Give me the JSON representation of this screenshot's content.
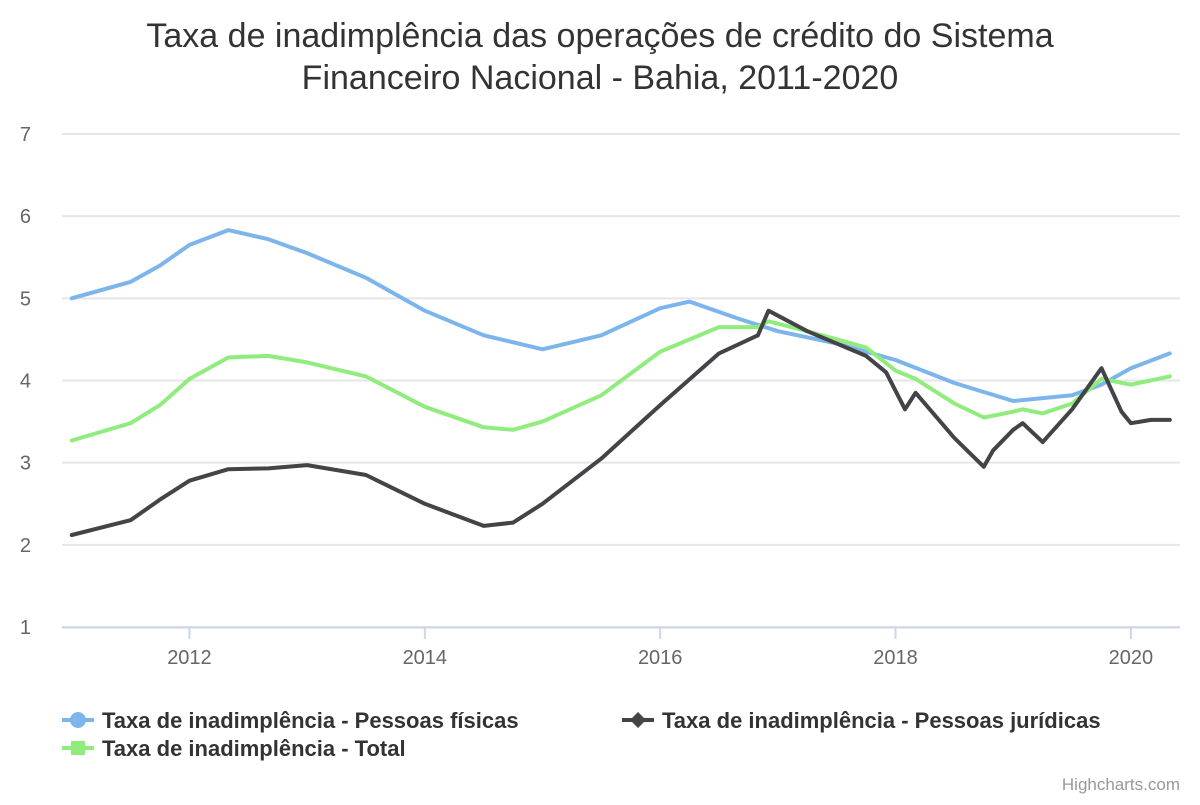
{
  "chart_data": {
    "type": "line",
    "title_line1": "Taxa de inadimplência das operações de crédito do Sistema",
    "title_line2": "Financeiro Nacional - Bahia, 2011-2020",
    "ylim": [
      1,
      7
    ],
    "xlim": [
      2010.917,
      2020.417
    ],
    "y_ticks": [
      "1",
      "2",
      "3",
      "4",
      "5",
      "6",
      "7"
    ],
    "x_ticks": [
      "2012",
      "2014",
      "2016",
      "2018",
      "2020"
    ],
    "grid": true,
    "legend_position": "bottom",
    "series": [
      {
        "name": "Taxa de inadimplência - Pessoas físicas",
        "color": "#7cb5ec",
        "marker": "circle",
        "x": [
          2011.0,
          2011.5,
          2011.75,
          2012.0,
          2012.33,
          2012.67,
          2013.0,
          2013.5,
          2014.0,
          2014.5,
          2015.0,
          2015.5,
          2016.0,
          2016.25,
          2016.67,
          2017.0,
          2017.5,
          2018.0,
          2018.5,
          2019.0,
          2019.5,
          2019.75,
          2020.0,
          2020.33
        ],
        "y": [
          5.0,
          5.2,
          5.4,
          5.65,
          5.83,
          5.72,
          5.55,
          5.25,
          4.85,
          4.55,
          4.38,
          4.55,
          4.88,
          4.96,
          4.75,
          4.6,
          4.45,
          4.25,
          3.97,
          3.75,
          3.82,
          3.95,
          4.15,
          4.33
        ]
      },
      {
        "name": "Taxa de inadimplência - Pessoas jurídicas",
        "color": "#434348",
        "marker": "diamond",
        "x": [
          2011.0,
          2011.5,
          2011.75,
          2012.0,
          2012.33,
          2012.67,
          2013.0,
          2013.5,
          2014.0,
          2014.5,
          2014.75,
          2015.0,
          2015.5,
          2016.0,
          2016.5,
          2016.83,
          2016.92,
          2017.25,
          2017.75,
          2017.92,
          2018.08,
          2018.17,
          2018.5,
          2018.75,
          2018.83,
          2019.0,
          2019.08,
          2019.25,
          2019.5,
          2019.75,
          2019.92,
          2020.0,
          2020.17,
          2020.33
        ],
        "y": [
          2.12,
          2.3,
          2.55,
          2.78,
          2.92,
          2.93,
          2.97,
          2.85,
          2.5,
          2.23,
          2.27,
          2.5,
          3.05,
          3.7,
          4.33,
          4.55,
          4.85,
          4.6,
          4.3,
          4.1,
          3.65,
          3.85,
          3.3,
          2.95,
          3.15,
          3.4,
          3.48,
          3.25,
          3.65,
          4.15,
          3.62,
          3.48,
          3.52,
          3.52
        ]
      },
      {
        "name": "Taxa de inadimplência - Total",
        "color": "#90ed7d",
        "marker": "square",
        "x": [
          2011.0,
          2011.5,
          2011.75,
          2012.0,
          2012.33,
          2012.67,
          2013.0,
          2013.5,
          2014.0,
          2014.5,
          2014.75,
          2015.0,
          2015.5,
          2016.0,
          2016.5,
          2016.83,
          2016.92,
          2017.25,
          2017.75,
          2018.0,
          2018.17,
          2018.5,
          2018.75,
          2019.0,
          2019.08,
          2019.25,
          2019.5,
          2019.75,
          2020.0,
          2020.33
        ],
        "y": [
          3.27,
          3.48,
          3.7,
          4.02,
          4.28,
          4.3,
          4.22,
          4.05,
          3.68,
          3.43,
          3.4,
          3.5,
          3.82,
          4.35,
          4.65,
          4.65,
          4.72,
          4.6,
          4.4,
          4.12,
          4.02,
          3.72,
          3.55,
          3.62,
          3.65,
          3.6,
          3.72,
          4.02,
          3.95,
          4.05
        ]
      }
    ]
  },
  "credits": "Highcharts.com"
}
